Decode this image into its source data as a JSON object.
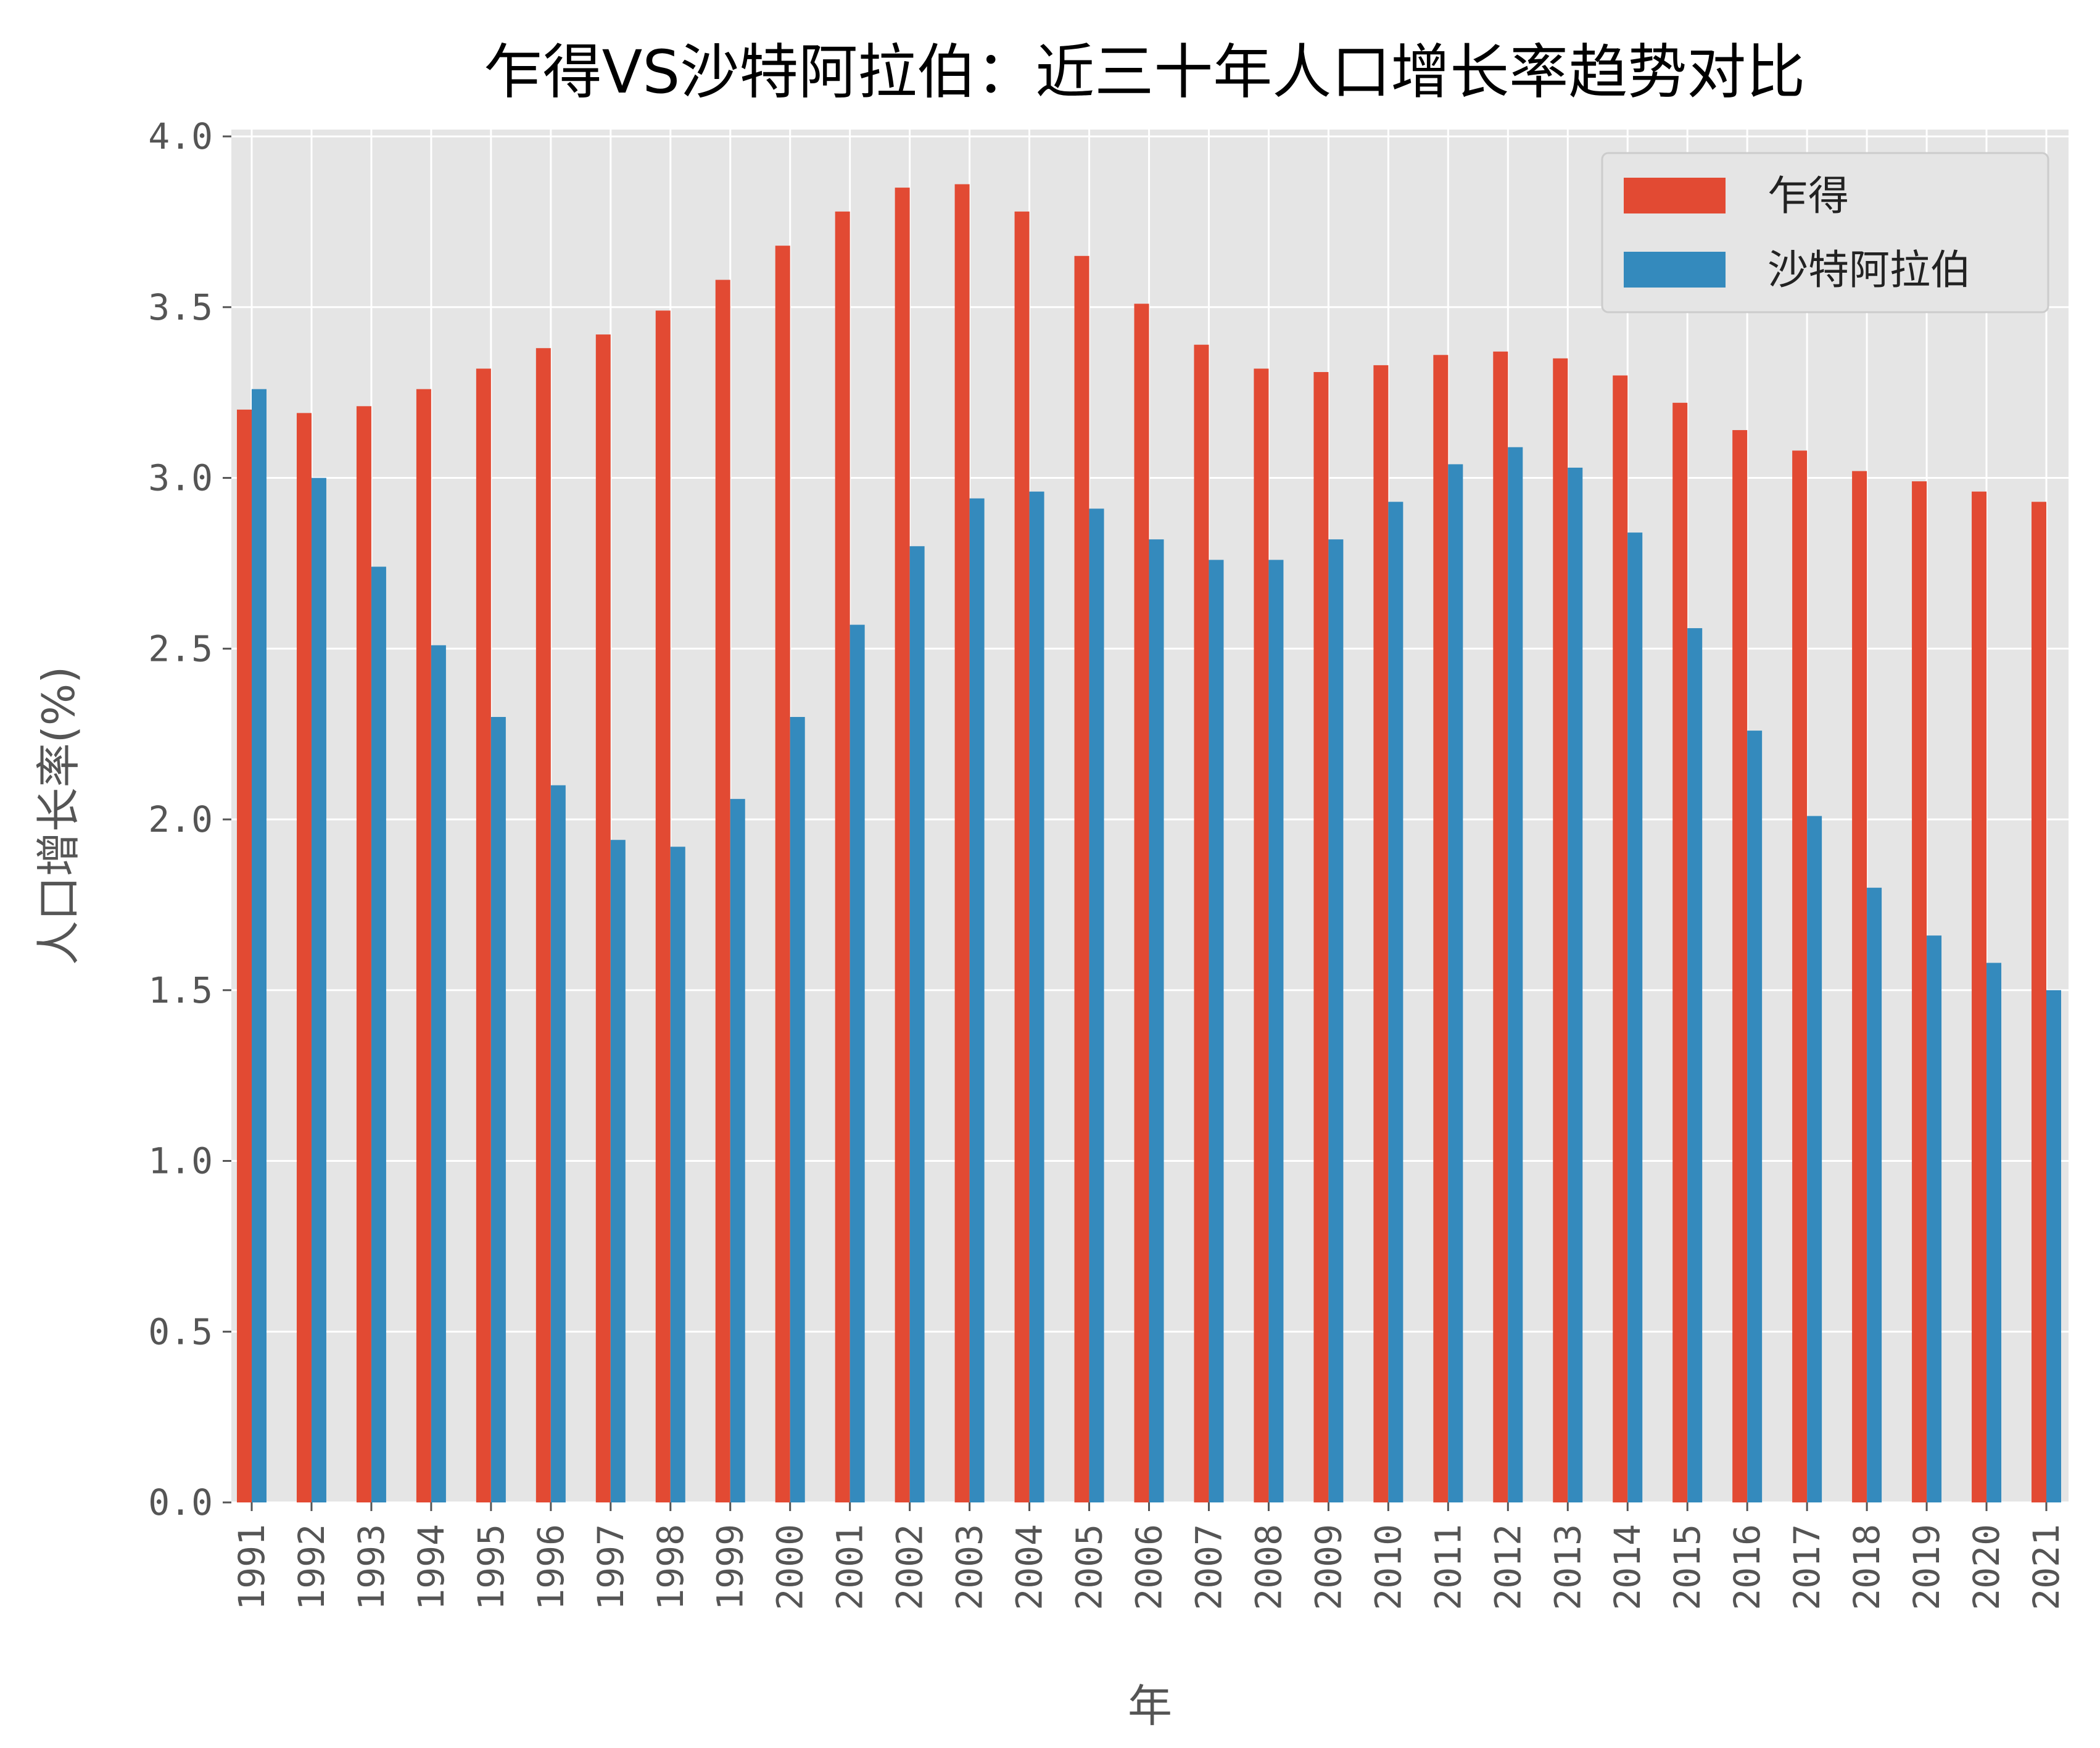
{
  "chart_data": {
    "type": "bar",
    "title": "乍得VS沙特阿拉伯：近三十年人口增长率趋势对比",
    "xlabel": "年",
    "ylabel": "人口增长率(%)",
    "ylim": [
      0,
      4.02
    ],
    "yticks": [
      "0.0",
      "0.5",
      "1.0",
      "1.5",
      "2.0",
      "2.5",
      "3.0",
      "3.5",
      "4.0"
    ],
    "grid": true,
    "legend_position": "top-right",
    "categories": [
      "1991",
      "1992",
      "1993",
      "1994",
      "1995",
      "1996",
      "1997",
      "1998",
      "1999",
      "2000",
      "2001",
      "2002",
      "2003",
      "2004",
      "2005",
      "2006",
      "2007",
      "2008",
      "2009",
      "2010",
      "2011",
      "2012",
      "2013",
      "2014",
      "2015",
      "2016",
      "2017",
      "2018",
      "2019",
      "2020",
      "2021"
    ],
    "series": [
      {
        "name": "乍得",
        "color": "#E24A33",
        "values": [
          3.2,
          3.19,
          3.21,
          3.26,
          3.32,
          3.38,
          3.42,
          3.49,
          3.58,
          3.68,
          3.78,
          3.85,
          3.86,
          3.78,
          3.65,
          3.51,
          3.39,
          3.32,
          3.31,
          3.33,
          3.36,
          3.37,
          3.35,
          3.3,
          3.22,
          3.14,
          3.08,
          3.02,
          2.99,
          2.96,
          2.93
        ]
      },
      {
        "name": "沙特阿拉伯",
        "color": "#348ABD",
        "values": [
          3.26,
          3.0,
          2.74,
          2.51,
          2.3,
          2.1,
          1.94,
          1.92,
          2.06,
          2.3,
          2.57,
          2.8,
          2.94,
          2.96,
          2.91,
          2.82,
          2.76,
          2.76,
          2.82,
          2.93,
          3.04,
          3.09,
          3.03,
          2.84,
          2.56,
          2.26,
          2.01,
          1.8,
          1.66,
          1.58,
          1.5
        ]
      }
    ],
    "background_color": "#E5E5E5",
    "grid_color": "#FFFFFF"
  }
}
